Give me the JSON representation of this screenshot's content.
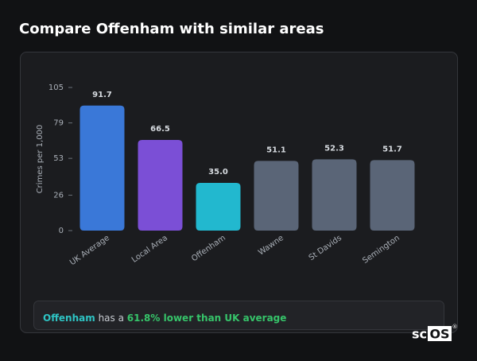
{
  "header": {
    "title": "Compare Offenham with similar areas"
  },
  "chart_data": {
    "type": "bar",
    "y_label": "Crimes per 1,000",
    "categories": [
      "UK Average",
      "Local Area",
      "Offenham",
      "Wawne",
      "St Davids",
      "Semington"
    ],
    "values": [
      91.7,
      66.5,
      35.0,
      51.1,
      52.3,
      51.7
    ],
    "value_labels": [
      "91.7",
      "66.5",
      "35.0",
      "51.1",
      "52.3",
      "51.7"
    ],
    "colors": [
      "#3a78d8",
      "#7b4fd6",
      "#22b8cf",
      "#5a6577",
      "#5a6577",
      "#5a6577"
    ],
    "ylim": [
      0,
      105
    ],
    "yticks": [
      0,
      26,
      53,
      79,
      105
    ],
    "grid": false
  },
  "summary": {
    "area": "Offenham",
    "middle": "has a",
    "comparison": "61.8% lower than UK average"
  },
  "logo": {
    "prefix": "sc",
    "boxed": "OS",
    "mark": "®"
  }
}
